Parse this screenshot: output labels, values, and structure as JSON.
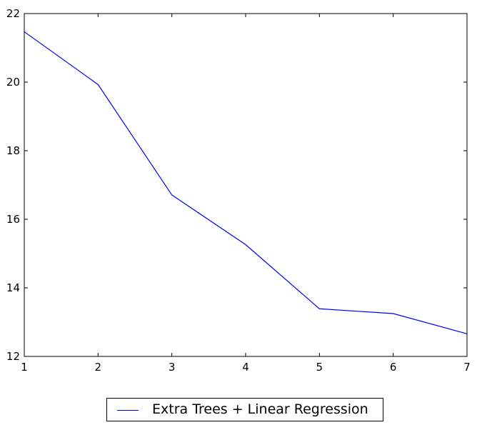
{
  "chart_data": {
    "type": "line",
    "x": [
      1,
      2,
      3,
      4,
      5,
      6,
      7
    ],
    "xlim": [
      1,
      7
    ],
    "ylim": [
      12,
      22
    ],
    "x_ticks": [
      "1",
      "2",
      "3",
      "4",
      "5",
      "6",
      "7"
    ],
    "y_ticks": [
      "12",
      "14",
      "16",
      "18",
      "20",
      "22"
    ],
    "y_tick_values": [
      12,
      14,
      16,
      18,
      20,
      22
    ],
    "series": [
      {
        "name": "Extra Trees + Linear Regression",
        "color": "#0000ff",
        "values": [
          21.47,
          19.93,
          16.71,
          15.26,
          13.39,
          13.25,
          12.66
        ]
      }
    ],
    "grid": false,
    "legend_position": "bottom-center"
  }
}
